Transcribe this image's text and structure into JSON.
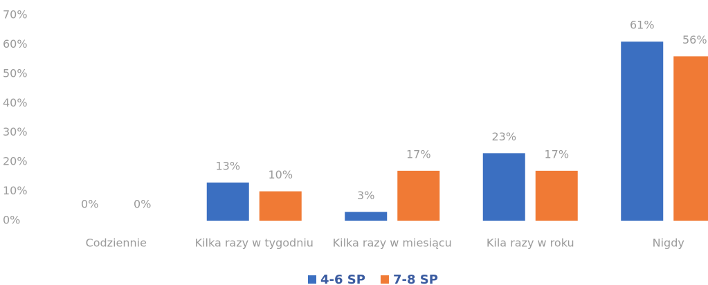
{
  "chart_data": {
    "type": "bar",
    "categories": [
      "Codziennie",
      "Kilka razy w tygodniu",
      "Kilka razy w miesiącu",
      "Kila razy w roku",
      "Nigdy"
    ],
    "series": [
      {
        "name": "4-6 SP",
        "color": "#3b6fc1",
        "values": [
          0,
          13,
          3,
          23,
          61
        ],
        "value_labels": [
          "0%",
          "13%",
          "3%",
          "23%",
          "61%"
        ]
      },
      {
        "name": "7-8 SP",
        "color": "#f07a35",
        "values": [
          0,
          10,
          17,
          17,
          56
        ],
        "value_labels": [
          "0%",
          "10%",
          "17%",
          "17%",
          "56%"
        ]
      }
    ],
    "ylim": [
      0,
      70
    ],
    "yticks": [
      {
        "value": 0,
        "label": "0%"
      },
      {
        "value": 10,
        "label": "10%"
      },
      {
        "value": 20,
        "label": "20%"
      },
      {
        "value": 30,
        "label": "30%"
      },
      {
        "value": 40,
        "label": "40%"
      },
      {
        "value": 50,
        "label": "50%"
      },
      {
        "value": 60,
        "label": "60%"
      },
      {
        "value": 70,
        "label": "70%"
      }
    ],
    "grid": false,
    "legend": "bottom"
  }
}
